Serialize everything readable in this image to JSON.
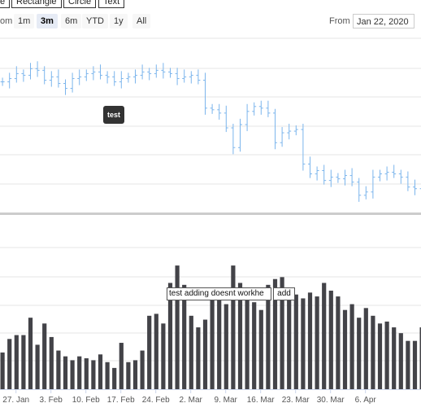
{
  "toolbar": {
    "buttons": [
      "e",
      "Rectangle",
      "Circle",
      "Text"
    ]
  },
  "range_selector": {
    "zoom_label": "om",
    "buttons": [
      "1m",
      "3m",
      "6m",
      "YTD",
      "1y",
      "All"
    ],
    "selected": "3m",
    "from_label": "From",
    "from_value": "Jan 22, 2020"
  },
  "annotations": {
    "dark_label": "test",
    "input_text": "test adding doesnt workhe",
    "add_label": "add"
  },
  "colors": {
    "ohlc": "#7cb5ec",
    "volume": "#434348",
    "grid": "#e6e6e6",
    "separator": "#cccccc"
  },
  "chart_data": [
    {
      "type": "ohlc",
      "series": [
        {
          "name": "",
          "values": [
            62.4,
            62.6,
            62.9,
            62.8,
            63.2,
            63.1,
            62.5,
            62.7,
            62.3,
            62.0,
            62.6,
            62.7,
            62.9,
            63.0,
            62.8,
            62.7,
            62.4,
            62.6,
            62.7,
            62.8,
            63.0,
            62.9,
            63.1,
            63.0,
            62.9,
            62.6,
            62.7,
            62.8,
            62.5,
            60.8,
            60.7,
            60.5,
            59.6,
            58.4,
            59.8,
            60.6,
            60.9,
            60.8,
            60.5,
            58.7,
            59.3,
            59.4,
            59.5,
            57.4,
            56.8,
            57.0,
            56.4,
            56.6,
            56.5,
            56.7,
            56.3,
            55.5,
            55.7,
            56.6,
            56.8,
            56.9,
            56.8,
            56.6,
            56.0,
            55.9,
            56.7,
            57.3
          ]
        }
      ],
      "ylim": [
        54.5,
        65
      ]
    },
    {
      "type": "bar",
      "x_ticks": [
        "27. Jan",
        "3. Feb",
        "10. Feb",
        "17. Feb",
        "24. Feb",
        "2. Mar",
        "9. Mar",
        "16. Mar",
        "23. Mar",
        "30. Mar",
        "6. Apr"
      ],
      "series": [
        {
          "name": "",
          "values": [
            19,
            26,
            28,
            28,
            37,
            23,
            34,
            27,
            20,
            17,
            15,
            17,
            16,
            15,
            18,
            14,
            11,
            24,
            14,
            15,
            20,
            38,
            39,
            34,
            55,
            64,
            54,
            38,
            32,
            36,
            49,
            49,
            44,
            64,
            55,
            48,
            45,
            41,
            54,
            57,
            58,
            48,
            49,
            47,
            50,
            48,
            55,
            51,
            48,
            41,
            44,
            37,
            42,
            38,
            34,
            35,
            32,
            29,
            25,
            25,
            32,
            33
          ],
          "ylim": [
            0,
            75
          ]
        }
      ]
    }
  ]
}
